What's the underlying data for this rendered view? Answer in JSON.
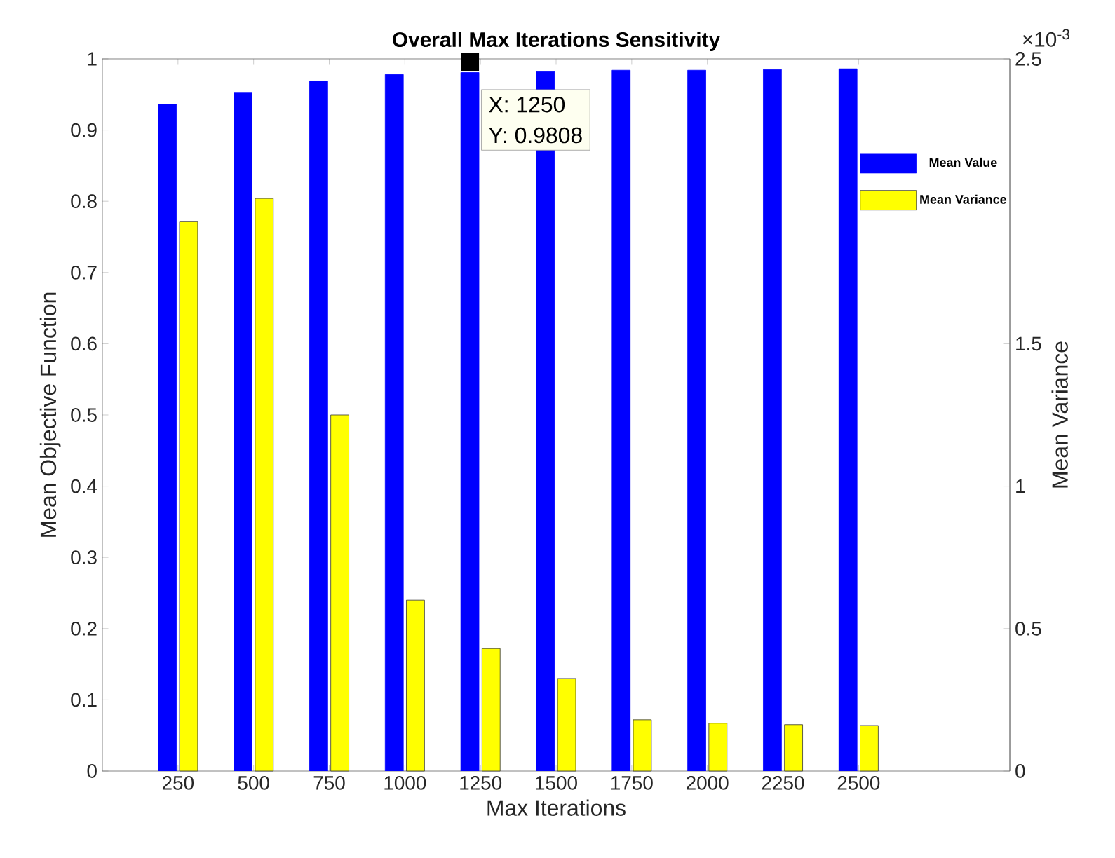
{
  "chart_data": {
    "type": "bar",
    "title": "Overall Max Iterations Sensitivity",
    "xlabel": "Max Iterations",
    "ylabel": "Mean Objective Function",
    "y2label": "Mean Variance",
    "categories": [
      "250",
      "500",
      "750",
      "1000",
      "1250",
      "1500",
      "1750",
      "2000",
      "2250",
      "2500"
    ],
    "series": [
      {
        "name": "Mean Value",
        "color": "#0000ff",
        "values": [
          0.936,
          0.953,
          0.969,
          0.978,
          0.9808,
          0.982,
          0.984,
          0.984,
          0.985,
          0.986
        ]
      },
      {
        "name": "Mean Variance",
        "color": "#ffff00",
        "axis": "y2",
        "values": [
          1.93,
          2.01,
          1.25,
          0.6,
          0.43,
          0.325,
          0.18,
          0.168,
          0.163,
          0.16
        ]
      }
    ],
    "ylim": [
      0,
      1
    ],
    "yticks": [
      0,
      0.1,
      0.2,
      0.3,
      0.4,
      0.5,
      0.6,
      0.7,
      0.8,
      0.9,
      1
    ],
    "y2lim": [
      0,
      2.5
    ],
    "y2ticks": [
      0,
      0.5,
      1,
      1.5,
      2.5
    ],
    "legend": "top right",
    "annotations": [
      "×10$^{-3}$",
      {
        "text": "X: 1250",
        "x": "1250",
        "y": 0.9808
      },
      {
        "text": "Y: 0.9808",
        "x": "1250",
        "y": 0.9808
      }
    ]
  }
}
